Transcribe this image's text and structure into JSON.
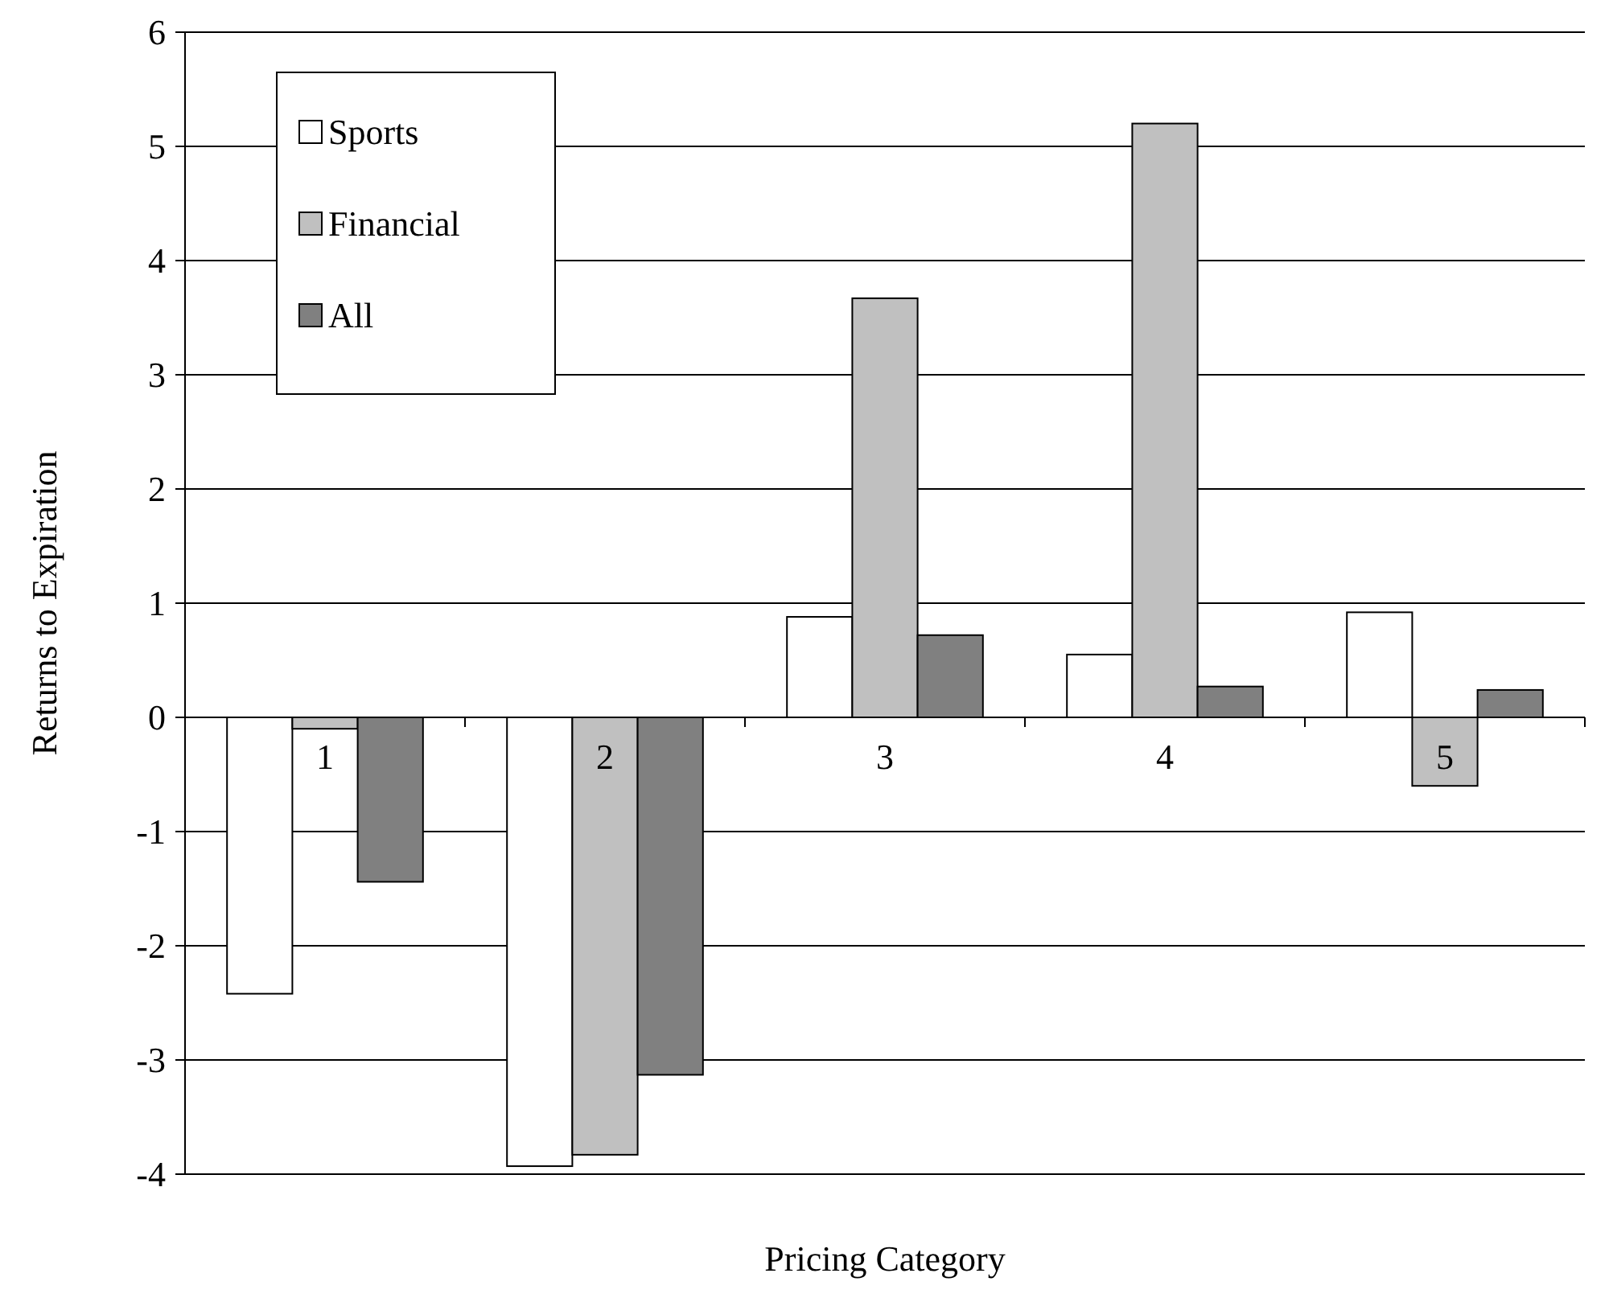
{
  "chart_data": {
    "type": "bar",
    "xlabel": "Pricing Category",
    "ylabel": "Returns to Expiration",
    "categories": [
      "1",
      "2",
      "3",
      "4",
      "5"
    ],
    "series": [
      {
        "name": "Sports",
        "color": "#ffffff",
        "values": [
          -2.42,
          -3.93,
          0.88,
          0.55,
          0.92
        ]
      },
      {
        "name": "Financial",
        "color": "#c0c0c0",
        "values": [
          -0.1,
          -3.83,
          3.67,
          5.2,
          -0.6
        ]
      },
      {
        "name": "All",
        "color": "#808080",
        "values": [
          -1.44,
          -3.13,
          0.72,
          0.27,
          0.24
        ]
      }
    ],
    "ylim": [
      -4,
      6
    ],
    "yticks": [
      -4,
      -3,
      -2,
      -1,
      0,
      1,
      2,
      3,
      4,
      5,
      6
    ],
    "grid": "y",
    "legend": "top left"
  }
}
